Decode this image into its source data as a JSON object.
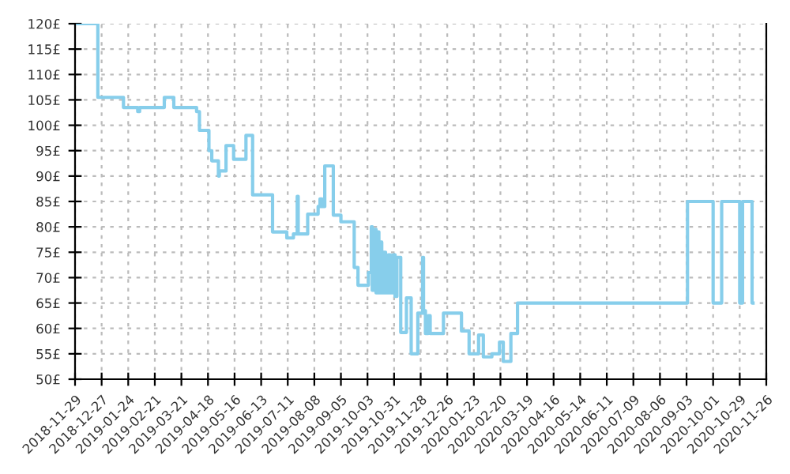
{
  "chart_data": {
    "type": "step",
    "color": "#87ceeb",
    "grid": true,
    "legend": false,
    "line_style": "solid",
    "marker": "none",
    "x": [
      "2018-11-29",
      "2018-12-23",
      "2019-01-19",
      "2019-02-03",
      "2019-02-05",
      "2019-03-03",
      "2019-03-13",
      "2019-04-06",
      "2019-04-09",
      "2019-04-19",
      "2019-04-22",
      "2019-04-29",
      "2019-04-30",
      "2019-05-07",
      "2019-05-15",
      "2019-05-28",
      "2019-06-04",
      "2019-06-25",
      "2019-07-10",
      "2019-07-17",
      "2019-07-21",
      "2019-07-22",
      "2019-08-01",
      "2019-08-12",
      "2019-08-14",
      "2019-08-16",
      "2019-08-19",
      "2019-08-28",
      "2019-09-05",
      "2019-09-19",
      "2019-09-23",
      "2019-10-04",
      "2019-10-07",
      "2019-10-08",
      "2019-10-09",
      "2019-10-10",
      "2019-10-11",
      "2019-10-12",
      "2019-10-14",
      "2019-10-15",
      "2019-10-17",
      "2019-10-18",
      "2019-10-20",
      "2019-10-22",
      "2019-10-25",
      "2019-10-27",
      "2019-10-30",
      "2019-11-01",
      "2019-11-03",
      "2019-11-07",
      "2019-11-13",
      "2019-11-18",
      "2019-11-25",
      "2019-11-30",
      "2019-12-01",
      "2019-12-03",
      "2019-12-06",
      "2019-12-08",
      "2019-12-22",
      "2020-01-10",
      "2020-01-18",
      "2020-01-28",
      "2020-02-02",
      "2020-02-11",
      "2020-02-19",
      "2020-02-23",
      "2020-03-02",
      "2020-03-09",
      "2020-09-04",
      "2020-10-01",
      "2020-10-10",
      "2020-10-29",
      "2020-11-01",
      "2020-11-11",
      "2020-11-12"
    ],
    "values": [
      120,
      105.5,
      103.5,
      102.7,
      103.5,
      105.5,
      103.5,
      102.7,
      99,
      95,
      93,
      90,
      91,
      96,
      93.3,
      98,
      86.3,
      79,
      77.8,
      78.6,
      86,
      78.6,
      82.5,
      84,
      85.5,
      84,
      92,
      82.3,
      81,
      72,
      68.5,
      71,
      80,
      67.5,
      79.5,
      68,
      79.5,
      67,
      79,
      67,
      77,
      67,
      75,
      67,
      74.5,
      67,
      74.5,
      66.3,
      74,
      59.2,
      66,
      55,
      63,
      74,
      63.5,
      59,
      62.5,
      59,
      63,
      59.5,
      55,
      58.7,
      54.4,
      55,
      57.3,
      53.5,
      59,
      65,
      85,
      65,
      85,
      65,
      85,
      65,
      65
    ],
    "xlim": [
      "2018-11-29",
      "2020-11-26"
    ],
    "xticks": [
      "2018-11-29",
      "2018-12-27",
      "2019-01-24",
      "2019-02-21",
      "2019-03-21",
      "2019-04-18",
      "2019-05-16",
      "2019-06-13",
      "2019-07-11",
      "2019-08-08",
      "2019-09-05",
      "2019-10-03",
      "2019-10-31",
      "2019-11-28",
      "2019-12-26",
      "2020-01-23",
      "2020-02-20",
      "2020-03-19",
      "2020-04-16",
      "2020-05-14",
      "2020-06-11",
      "2020-07-09",
      "2020-08-06",
      "2020-09-03",
      "2020-10-01",
      "2020-10-29",
      "2020-11-26"
    ],
    "ylim": [
      50,
      120
    ],
    "yticks": [
      {
        "value": 50,
        "label": "50£"
      },
      {
        "value": 55,
        "label": "55£"
      },
      {
        "value": 60,
        "label": "60£"
      },
      {
        "value": 65,
        "label": "65£"
      },
      {
        "value": 70,
        "label": "70£"
      },
      {
        "value": 75,
        "label": "75£"
      },
      {
        "value": 80,
        "label": "80£"
      },
      {
        "value": 85,
        "label": "85£"
      },
      {
        "value": 90,
        "label": "90£"
      },
      {
        "value": 95,
        "label": "95£"
      },
      {
        "value": 100,
        "label": "100£"
      },
      {
        "value": 105,
        "label": "105£"
      },
      {
        "value": 110,
        "label": "110£"
      },
      {
        "value": 115,
        "label": "115£"
      },
      {
        "value": 120,
        "label": "120£"
      }
    ]
  }
}
